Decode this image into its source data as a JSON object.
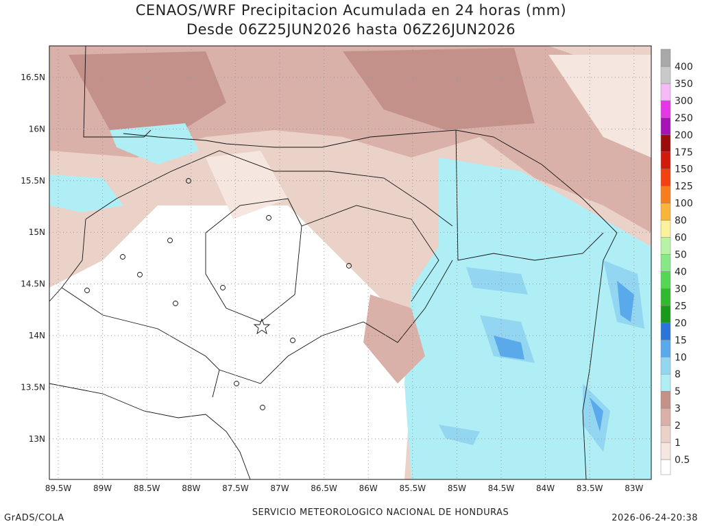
{
  "title": [
    "CENAOS/WRF Precipitacion Acumulada en 24 horas (mm)",
    "Desde 06Z25JUN2026 hasta 06Z26JUN2026"
  ],
  "lat_labels": [
    "16.5N",
    "16N",
    "15.5N",
    "15N",
    "14.5N",
    "14N",
    "13.5N",
    "13N"
  ],
  "lon_labels": [
    "89.5W",
    "89W",
    "88.5W",
    "88W",
    "87.5W",
    "87W",
    "86.5W",
    "86W",
    "85.5W",
    "85W",
    "84.5W",
    "84W",
    "83.5W",
    "83W"
  ],
  "colorbar": {
    "labels": [
      "0.5",
      "1",
      "2",
      "3",
      "5",
      "8",
      "10",
      "15",
      "20",
      "25",
      "30",
      "40",
      "50",
      "60",
      "80",
      "100",
      "125",
      "150",
      "175",
      "200",
      "250",
      "300",
      "350",
      "400"
    ],
    "colors": [
      "#ffffff",
      "#f5e6df",
      "#ead2c9",
      "#d9b1a8",
      "#c4918a",
      "#b0eef5",
      "#93d6f2",
      "#5aa9eb",
      "#2b74d9",
      "#1a9a1a",
      "#2fba2f",
      "#55d655",
      "#86e886",
      "#b7f2a7",
      "#fbf39c",
      "#f9b43a",
      "#f87e1d",
      "#f5400f",
      "#d21a0a",
      "#9b0c0c",
      "#a612b4",
      "#e537e5",
      "#f6bbf6",
      "#c9c9c9",
      "#a8a8a8",
      "#878787"
    ]
  },
  "footer": {
    "left": "GrADS/COLA",
    "center": "SERVICIO METEOROLOGICO NACIONAL DE HONDURAS",
    "right": "2026-06-24-20:38"
  }
}
